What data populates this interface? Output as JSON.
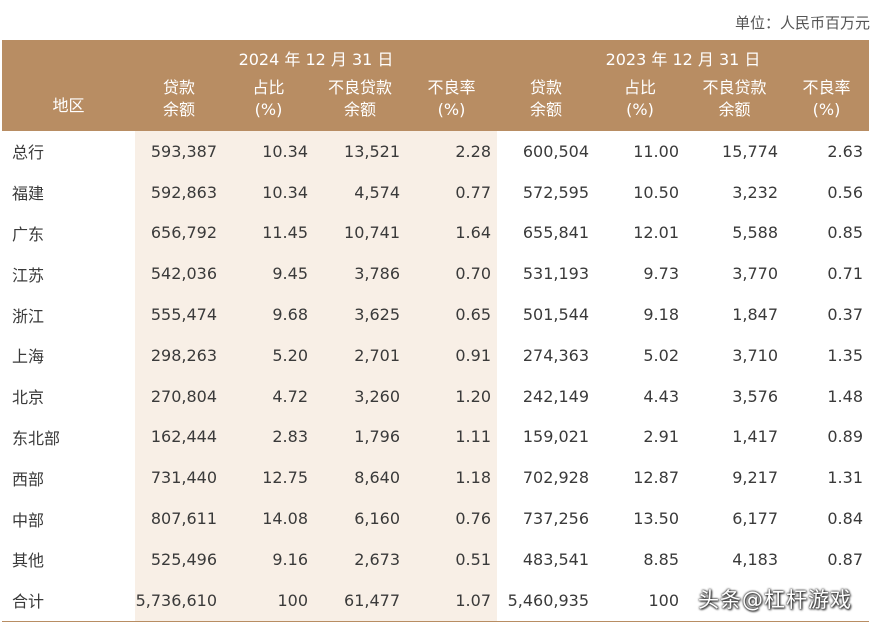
{
  "unit_label": "单位：人民币百万元",
  "header": {
    "region_label": "地区",
    "period_2024": "2024 年 12 月 31 日",
    "period_2023": "2023 年 12 月 31 日",
    "columns": [
      {
        "line1": "贷款",
        "line2": "余额"
      },
      {
        "line1": "占比",
        "line2": "(%)"
      },
      {
        "line1": "不良贷款",
        "line2": "余额"
      },
      {
        "line1": "不良率",
        "line2": "(%)"
      }
    ]
  },
  "rows": [
    {
      "region": "总行",
      "values": [
        "593,387",
        "10.34",
        "13,521",
        "2.28",
        "600,504",
        "11.00",
        "15,774",
        "2.63"
      ]
    },
    {
      "region": "福建",
      "values": [
        "592,863",
        "10.34",
        "4,574",
        "0.77",
        "572,595",
        "10.50",
        "3,232",
        "0.56"
      ]
    },
    {
      "region": "广东",
      "values": [
        "656,792",
        "11.45",
        "10,741",
        "1.64",
        "655,841",
        "12.01",
        "5,588",
        "0.85"
      ]
    },
    {
      "region": "江苏",
      "values": [
        "542,036",
        "9.45",
        "3,786",
        "0.70",
        "531,193",
        "9.73",
        "3,770",
        "0.71"
      ]
    },
    {
      "region": "浙江",
      "values": [
        "555,474",
        "9.68",
        "3,625",
        "0.65",
        "501,544",
        "9.18",
        "1,847",
        "0.37"
      ]
    },
    {
      "region": "上海",
      "values": [
        "298,263",
        "5.20",
        "2,701",
        "0.91",
        "274,363",
        "5.02",
        "3,710",
        "1.35"
      ]
    },
    {
      "region": "北京",
      "values": [
        "270,804",
        "4.72",
        "3,260",
        "1.20",
        "242,149",
        "4.43",
        "3,576",
        "1.48"
      ]
    },
    {
      "region": "东北部",
      "values": [
        "162,444",
        "2.83",
        "1,796",
        "1.11",
        "159,021",
        "2.91",
        "1,417",
        "0.89"
      ]
    },
    {
      "region": "西部",
      "values": [
        "731,440",
        "12.75",
        "8,640",
        "1.18",
        "702,928",
        "12.87",
        "9,217",
        "1.31"
      ]
    },
    {
      "region": "中部",
      "values": [
        "807,611",
        "14.08",
        "6,160",
        "0.76",
        "737,256",
        "13.50",
        "6,177",
        "0.84"
      ]
    },
    {
      "region": "其他",
      "values": [
        "525,496",
        "9.16",
        "2,673",
        "0.51",
        "483,541",
        "8.85",
        "4,183",
        "0.87"
      ]
    },
    {
      "region": "合计",
      "values": [
        "5,736,610",
        "100",
        "61,477",
        "1.07",
        "5,460,935",
        "100",
        "",
        ""
      ]
    }
  ],
  "watermark": "头条@杠杆游戏"
}
